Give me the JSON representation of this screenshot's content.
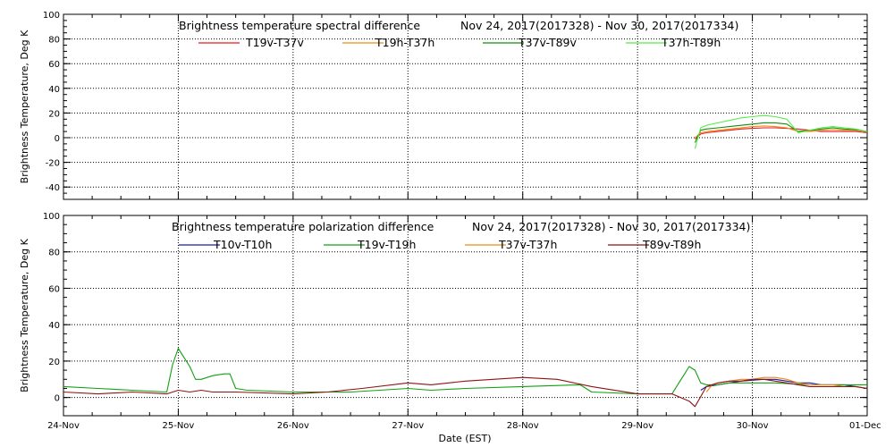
{
  "chart_data": [
    {
      "type": "line",
      "title": "Brightness temperature spectral difference",
      "date_range": "Nov 24, 2017(2017328) - Nov 30, 2017(2017334)",
      "ylabel": "Brightness Temperature, Deg K",
      "ylim": [
        -50,
        100
      ],
      "yticks": [
        -40,
        -20,
        0,
        20,
        40,
        60,
        80,
        100
      ],
      "grid": true,
      "legend": "top",
      "series": [
        {
          "name": "T19v-T37v",
          "color": "#e8191b",
          "points": [
            [
              5.5,
              -1
            ],
            [
              5.55,
              3
            ],
            [
              5.6,
              4
            ],
            [
              5.7,
              5
            ],
            [
              5.8,
              6
            ],
            [
              5.9,
              7
            ],
            [
              6.0,
              7.5
            ],
            [
              6.1,
              8
            ],
            [
              6.2,
              8
            ],
            [
              6.3,
              7.5
            ],
            [
              6.4,
              7
            ],
            [
              6.5,
              6
            ],
            [
              6.6,
              5
            ],
            [
              6.7,
              5
            ],
            [
              6.8,
              5
            ],
            [
              6.9,
              5
            ],
            [
              7.0,
              4
            ]
          ]
        },
        {
          "name": "T19h-T37h",
          "color": "#f08a16",
          "points": [
            [
              5.5,
              0
            ],
            [
              5.55,
              4
            ],
            [
              5.6,
              5
            ],
            [
              5.7,
              6
            ],
            [
              5.8,
              7
            ],
            [
              5.9,
              8
            ],
            [
              6.0,
              9
            ],
            [
              6.1,
              9.5
            ],
            [
              6.2,
              9
            ],
            [
              6.3,
              8
            ],
            [
              6.4,
              5
            ],
            [
              6.5,
              5
            ],
            [
              6.6,
              6
            ],
            [
              6.7,
              6.5
            ],
            [
              6.8,
              6
            ],
            [
              6.9,
              6
            ],
            [
              7.0,
              5
            ]
          ]
        },
        {
          "name": "T37v-T89v",
          "color": "#118c11",
          "points": [
            [
              5.5,
              -4
            ],
            [
              5.55,
              6
            ],
            [
              5.6,
              7
            ],
            [
              5.7,
              8
            ],
            [
              5.8,
              9
            ],
            [
              5.9,
              10
            ],
            [
              6.0,
              11
            ],
            [
              6.1,
              12
            ],
            [
              6.2,
              12
            ],
            [
              6.3,
              11
            ],
            [
              6.4,
              5
            ],
            [
              6.5,
              6
            ],
            [
              6.6,
              7
            ],
            [
              6.7,
              8
            ],
            [
              6.8,
              7
            ],
            [
              6.9,
              6.5
            ],
            [
              7.0,
              5
            ]
          ]
        },
        {
          "name": "T37h-T89h",
          "color": "#55ee44",
          "points": [
            [
              5.5,
              -9
            ],
            [
              5.55,
              8
            ],
            [
              5.6,
              10
            ],
            [
              5.7,
              12
            ],
            [
              5.8,
              14
            ],
            [
              5.9,
              16
            ],
            [
              6.0,
              17
            ],
            [
              6.1,
              18
            ],
            [
              6.2,
              17
            ],
            [
              6.3,
              15
            ],
            [
              6.4,
              4
            ],
            [
              6.5,
              6
            ],
            [
              6.6,
              8
            ],
            [
              6.7,
              9
            ],
            [
              6.8,
              8
            ],
            [
              6.9,
              7
            ],
            [
              7.0,
              5
            ]
          ]
        }
      ]
    },
    {
      "type": "line",
      "title": "Brightness temperature polarization difference",
      "date_range": "Nov 24, 2017(2017328) - Nov 30, 2017(2017334)",
      "xlabel": "Date (EST)",
      "ylabel": "Brightness Temperature, Deg K",
      "ylim": [
        -10,
        100
      ],
      "yticks": [
        0,
        20,
        40,
        60,
        80,
        100
      ],
      "xticks": [
        "24-Nov",
        "25-Nov",
        "26-Nov",
        "27-Nov",
        "28-Nov",
        "29-Nov",
        "30-Nov",
        "01-Dec"
      ],
      "xlim": [
        0,
        7
      ],
      "grid": true,
      "legend": "top",
      "series": [
        {
          "name": "T10v-T10h",
          "color": "#1a1aa8",
          "points": [
            [
              5.55,
              4
            ],
            [
              5.6,
              6
            ],
            [
              5.7,
              7
            ],
            [
              5.8,
              8
            ],
            [
              5.9,
              9
            ],
            [
              6.0,
              9.5
            ],
            [
              6.1,
              10
            ],
            [
              6.2,
              10
            ],
            [
              6.3,
              9
            ],
            [
              6.4,
              8
            ],
            [
              6.5,
              8
            ],
            [
              6.6,
              7
            ],
            [
              6.7,
              7
            ],
            [
              6.8,
              7
            ],
            [
              6.9,
              6
            ],
            [
              7.0,
              5
            ]
          ]
        },
        {
          "name": "T19v-T19h",
          "color": "#12a012",
          "points": [
            [
              0,
              6
            ],
            [
              0.3,
              5
            ],
            [
              0.6,
              4
            ],
            [
              0.9,
              3
            ],
            [
              0.95,
              18
            ],
            [
              1.0,
              27
            ],
            [
              1.05,
              22
            ],
            [
              1.1,
              17
            ],
            [
              1.15,
              10
            ],
            [
              1.2,
              10
            ],
            [
              1.3,
              12
            ],
            [
              1.4,
              13
            ],
            [
              1.45,
              13
            ],
            [
              1.5,
              5
            ],
            [
              1.6,
              4
            ],
            [
              2.0,
              3
            ],
            [
              2.5,
              3
            ],
            [
              3.0,
              5
            ],
            [
              3.2,
              4
            ],
            [
              3.5,
              5
            ],
            [
              4.0,
              6
            ],
            [
              4.5,
              7
            ],
            [
              4.6,
              3
            ],
            [
              5.0,
              2
            ],
            [
              5.3,
              2
            ],
            [
              5.45,
              17
            ],
            [
              5.5,
              15
            ],
            [
              5.55,
              8
            ],
            [
              5.6,
              7
            ],
            [
              5.7,
              7
            ],
            [
              5.8,
              8
            ],
            [
              6.0,
              8
            ],
            [
              6.2,
              8
            ],
            [
              6.5,
              7
            ],
            [
              7.0,
              7
            ]
          ]
        },
        {
          "name": "T37v-T37h",
          "color": "#f08a16",
          "points": [
            [
              5.6,
              3
            ],
            [
              5.65,
              7
            ],
            [
              5.7,
              8
            ],
            [
              5.8,
              9
            ],
            [
              5.9,
              10
            ],
            [
              6.0,
              10
            ],
            [
              6.1,
              11
            ],
            [
              6.2,
              11
            ],
            [
              6.3,
              10
            ],
            [
              6.4,
              8
            ],
            [
              6.5,
              7
            ],
            [
              6.6,
              7
            ],
            [
              6.7,
              7
            ],
            [
              6.8,
              6
            ],
            [
              6.9,
              6
            ],
            [
              7.0,
              5
            ]
          ]
        },
        {
          "name": "T89v-T89h",
          "color": "#8c1414",
          "points": [
            [
              0,
              3
            ],
            [
              0.3,
              2
            ],
            [
              0.6,
              3
            ],
            [
              0.9,
              2
            ],
            [
              1.0,
              4
            ],
            [
              1.1,
              3
            ],
            [
              1.2,
              4
            ],
            [
              1.3,
              3
            ],
            [
              1.5,
              3
            ],
            [
              2.0,
              2
            ],
            [
              2.3,
              3
            ],
            [
              2.6,
              5
            ],
            [
              3.0,
              8
            ],
            [
              3.2,
              7
            ],
            [
              3.5,
              9
            ],
            [
              4.0,
              11
            ],
            [
              4.3,
              10
            ],
            [
              4.6,
              6
            ],
            [
              5.0,
              2
            ],
            [
              5.3,
              2
            ],
            [
              5.45,
              -2
            ],
            [
              5.5,
              -5
            ],
            [
              5.6,
              6
            ],
            [
              5.7,
              8
            ],
            [
              5.8,
              9
            ],
            [
              5.9,
              9
            ],
            [
              6.0,
              10
            ],
            [
              6.1,
              10
            ],
            [
              6.2,
              9
            ],
            [
              6.3,
              8
            ],
            [
              6.4,
              7
            ],
            [
              6.5,
              6
            ],
            [
              6.6,
              6
            ],
            [
              6.7,
              6
            ],
            [
              6.8,
              6
            ],
            [
              6.9,
              6
            ],
            [
              7.0,
              5
            ]
          ]
        }
      ]
    }
  ]
}
